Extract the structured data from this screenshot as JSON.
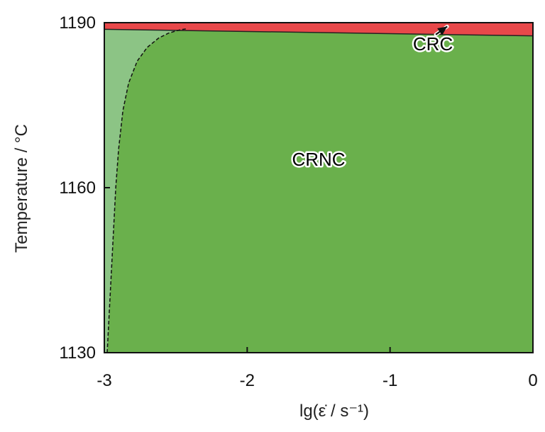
{
  "chart_data": {
    "type": "area",
    "xlabel": "lg(ε̇ / s⁻¹)",
    "ylabel": "Temperature / °C",
    "xlim": [
      -3,
      0
    ],
    "ylim": [
      1130,
      1190
    ],
    "x_ticks": [
      -3,
      -2,
      -1,
      0
    ],
    "x_tick_labels": [
      "-3",
      "-2",
      "-1",
      "0"
    ],
    "y_ticks": [
      1130,
      1160,
      1190
    ],
    "y_tick_labels": [
      "1130",
      "1160",
      "1190"
    ],
    "grid": false,
    "regions": [
      {
        "label": "CRC",
        "color": "#e8484a",
        "lower_boundary": {
          "x": [
            -3,
            0
          ],
          "y": [
            1188.8,
            1187.6
          ]
        },
        "label_at": {
          "x": -0.7,
          "y": 1185
        }
      },
      {
        "label": "CRNC",
        "color": "#6ab04c",
        "label_at": {
          "x": -1.5,
          "y": 1164
        }
      }
    ],
    "dashed_boundary": {
      "x": [
        -2.98,
        -2.96,
        -2.94,
        -2.92,
        -2.9,
        -2.87,
        -2.83,
        -2.77,
        -2.7,
        -2.62,
        -2.55,
        -2.47,
        -2.42
      ],
      "y": [
        1130,
        1140,
        1150,
        1160,
        1167,
        1174,
        1179,
        1183,
        1185.5,
        1187.2,
        1188.1,
        1188.7,
        1188.9
      ],
      "fill_color": "#8cc485"
    },
    "annotations": [
      {
        "text": "CRC",
        "arrow_to": {
          "x": -0.6,
          "y": 1189.3
        }
      }
    ]
  }
}
